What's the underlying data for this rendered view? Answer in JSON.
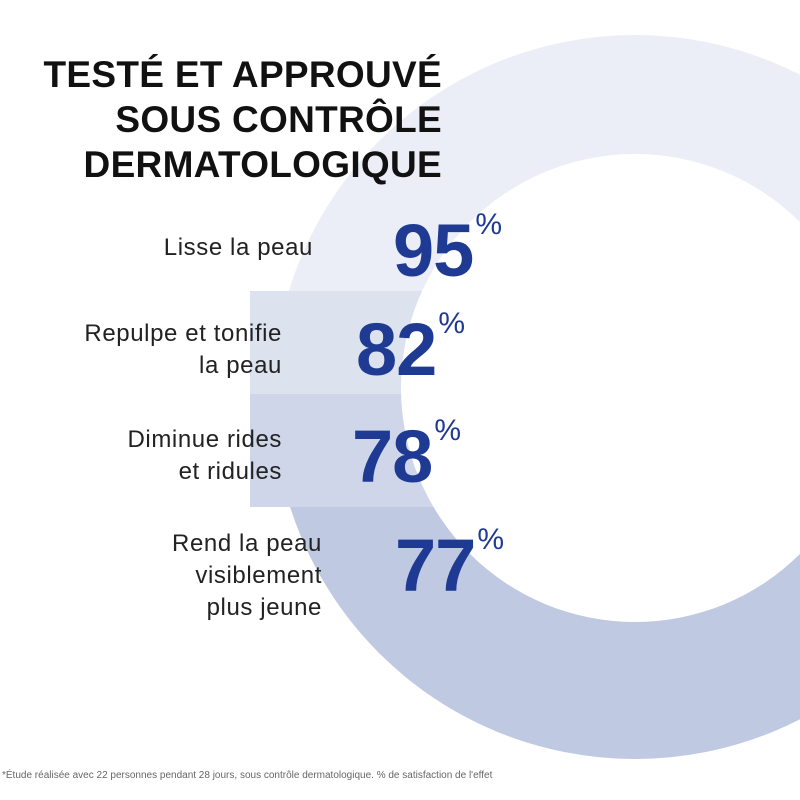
{
  "title_lines": [
    "TESTÉ ET APPROUVÉ",
    "SOUS CONTRÔLE",
    "DERMATOLOGIQUE"
  ],
  "claims": [
    {
      "label_lines": [
        "Lisse la peau"
      ],
      "value": "95",
      "unit": "%",
      "band_color": "#ebeef6"
    },
    {
      "label_lines": [
        "Repulpe et tonifie",
        "la peau"
      ],
      "value": "82",
      "unit": "%",
      "band_color": "#dde2ef"
    },
    {
      "label_lines": [
        "Diminue rides",
        "et ridules"
      ],
      "value": "78",
      "unit": "%",
      "band_color": "#cfd6e9"
    },
    {
      "label_lines": [
        "Rend la peau",
        "visiblement",
        "plus jeune"
      ],
      "value": "77",
      "unit": "%",
      "band_color": "#bfc9e1"
    }
  ],
  "footnote": "*Étude réalisée avec 22 personnes pendant 28 jours, sous contrôle dermatologique. % de satisfaction de l'effet",
  "colors": {
    "accent": "#1f3a93",
    "text": "#222222",
    "title": "#111111",
    "background": "#ffffff"
  }
}
